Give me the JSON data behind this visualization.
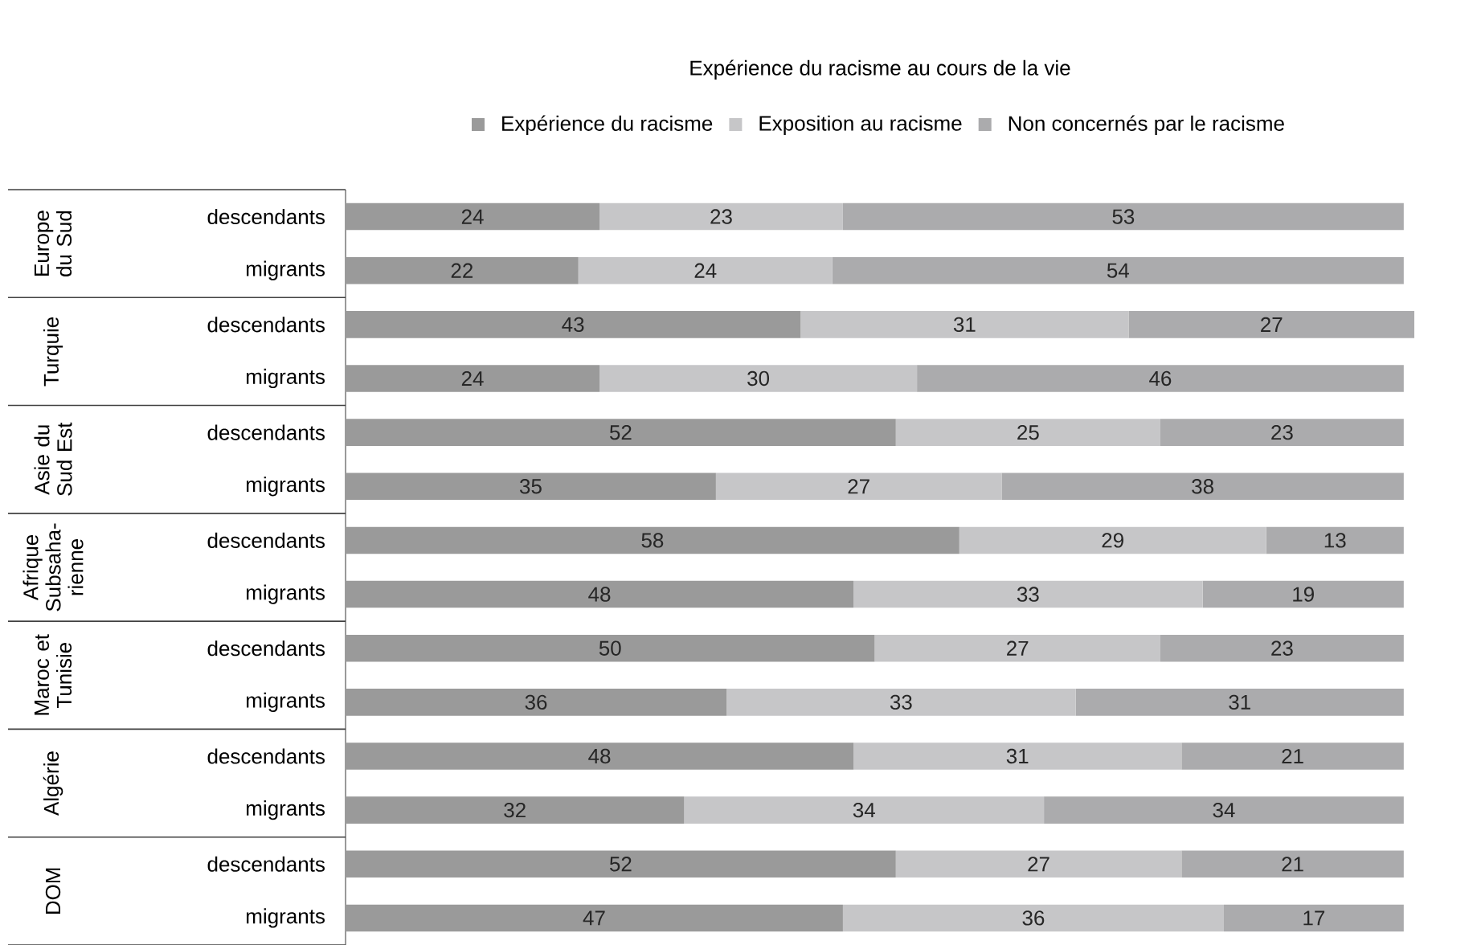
{
  "chart_data": {
    "type": "bar",
    "orientation": "horizontal",
    "stacked": true,
    "data_labels": true,
    "legend": "top",
    "title": "Expérience du racisme au cours de la vie",
    "categories": [
      "descendants",
      "migrants",
      "descendants",
      "migrants",
      "descendants",
      "migrants",
      "descendants",
      "migrants",
      "descendants",
      "migrants",
      "descendants",
      "migrants",
      "descendants",
      "migrants"
    ],
    "series": [
      {
        "name": "Expérience du racisme",
        "color": "#9a9a9a",
        "values": [
          24,
          22,
          43,
          24,
          52,
          35,
          58,
          48,
          50,
          36,
          48,
          32,
          52,
          47
        ]
      },
      {
        "name": "Exposition au racisme",
        "color": "#c6c6c8",
        "values": [
          23,
          24,
          31,
          30,
          25,
          27,
          29,
          33,
          27,
          33,
          31,
          34,
          27,
          36
        ]
      },
      {
        "name": "Non concernés par le racisme",
        "color": "#ababad",
        "values": [
          53,
          54,
          27,
          46,
          23,
          38,
          13,
          19,
          23,
          31,
          21,
          34,
          21,
          17
        ]
      }
    ],
    "annotations": [
      "Europe du Sud",
      "Turquie",
      "Asie du Sud Est",
      "Afrique Subsaha-rienne",
      "Maroc et Tunisie",
      "Algérie",
      "DOM"
    ]
  }
}
